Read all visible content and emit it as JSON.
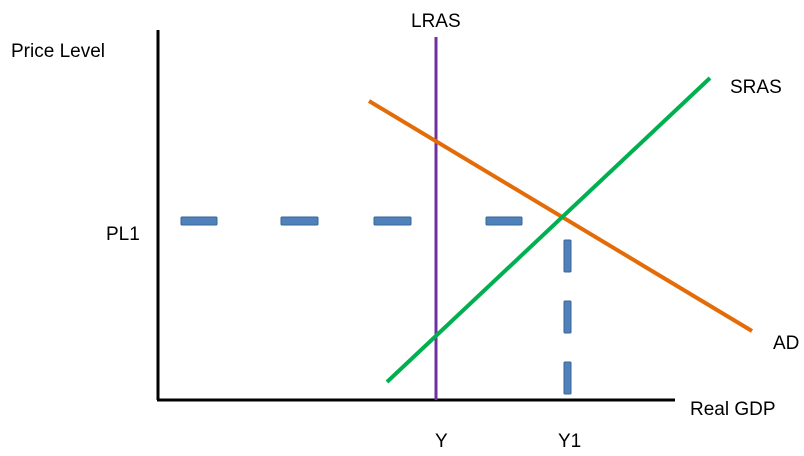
{
  "labels": {
    "y_axis": "Price Level",
    "x_axis": "Real GDP",
    "lras": "LRAS",
    "sras": "SRAS",
    "ad": "AD",
    "pl1": "PL1",
    "y": "Y",
    "y1": "Y1"
  },
  "colors": {
    "axes": "#000000",
    "lras": "#7030a0",
    "sras": "#00b050",
    "ad": "#e36c09",
    "guide_fill": "#4f81bd",
    "guide_stroke": "#3a6593"
  }
}
